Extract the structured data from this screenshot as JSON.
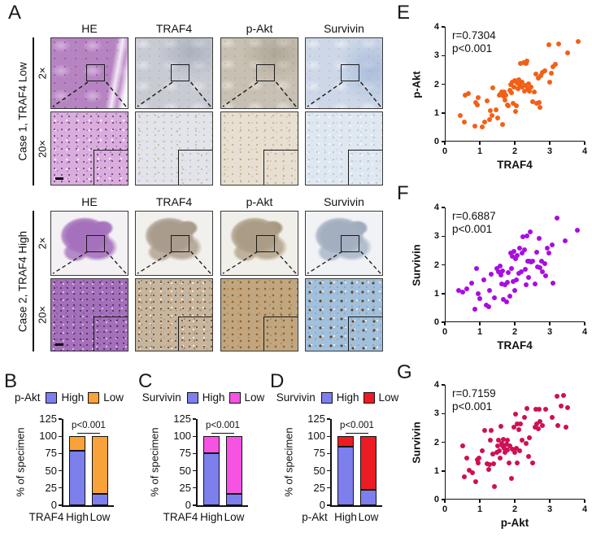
{
  "panelA": {
    "label": "A",
    "columns": [
      "HE",
      "TRAF4",
      "p-Akt",
      "Survivin"
    ],
    "blocks": [
      {
        "case_label": "Case 1, TRAF4 Low",
        "row_labels": [
          "2×",
          "20×"
        ]
      },
      {
        "case_label": "Case 2, TRAF4 High",
        "row_labels": [
          "2×",
          "20×"
        ]
      }
    ]
  },
  "chart_data": [
    {
      "id": "B",
      "type": "stacked-bar",
      "legend_title": "p-Akt",
      "legend": [
        {
          "label": "High",
          "color": "#7d7fed"
        },
        {
          "label": "Low",
          "color": "#f9a23a"
        }
      ],
      "ylabel": "% of specimen",
      "yticks": [
        0,
        25,
        50,
        75,
        100,
        125
      ],
      "ylim": [
        0,
        125
      ],
      "xlabel": "TRAF4",
      "categories": [
        "High",
        "Low"
      ],
      "series": [
        {
          "name": "High",
          "color": "#7d7fed",
          "values": [
            79,
            16
          ]
        },
        {
          "name": "Low",
          "color": "#f9a23a",
          "values": [
            21,
            84
          ]
        }
      ],
      "p_text": "p<0.001"
    },
    {
      "id": "C",
      "type": "stacked-bar",
      "legend_title": "Survivin",
      "legend": [
        {
          "label": "High",
          "color": "#7d7fed"
        },
        {
          "label": "Low",
          "color": "#f653e3"
        }
      ],
      "ylabel": "% of specimen",
      "yticks": [
        0,
        25,
        50,
        75,
        100,
        125
      ],
      "ylim": [
        0,
        125
      ],
      "xlabel": "TRAF4",
      "categories": [
        "High",
        "Low"
      ],
      "series": [
        {
          "name": "High",
          "color": "#7d7fed",
          "values": [
            75,
            17
          ]
        },
        {
          "name": "Low",
          "color": "#f653e3",
          "values": [
            25,
            83
          ]
        }
      ],
      "p_text": "p<0.001"
    },
    {
      "id": "D",
      "type": "stacked-bar",
      "legend_title": "Survivin",
      "legend": [
        {
          "label": "High",
          "color": "#7d7fed"
        },
        {
          "label": "Low",
          "color": "#ec1c24"
        }
      ],
      "ylabel": "% of specimen",
      "yticks": [
        0,
        25,
        50,
        75,
        100,
        125
      ],
      "ylim": [
        0,
        125
      ],
      "xlabel": "p-Akt",
      "categories": [
        "High",
        "Low"
      ],
      "series": [
        {
          "name": "High",
          "color": "#7d7fed",
          "values": [
            85,
            22
          ]
        },
        {
          "name": "Low",
          "color": "#ec1c24",
          "values": [
            15,
            78
          ]
        }
      ],
      "p_text": "p<0.001"
    },
    {
      "id": "E",
      "type": "scatter",
      "annotation": [
        "r=0.7304",
        "p<0.001"
      ],
      "xlabel": "TRAF4",
      "ylabel": "p-Akt",
      "color": "#f26018",
      "xlim": [
        0,
        4
      ],
      "ylim": [
        0,
        4
      ],
      "xticks": [
        0,
        1,
        2,
        3,
        4
      ],
      "yticks": [
        0,
        1,
        2,
        3,
        4
      ],
      "points": [
        [
          0.45,
          0.9
        ],
        [
          0.55,
          0.68
        ],
        [
          0.58,
          1.62
        ],
        [
          0.68,
          1.68
        ],
        [
          0.85,
          0.55
        ],
        [
          0.88,
          1.35
        ],
        [
          0.92,
          1.28
        ],
        [
          0.95,
          1.52
        ],
        [
          1.08,
          0.52
        ],
        [
          1.15,
          0.68
        ],
        [
          1.22,
          1.42
        ],
        [
          1.28,
          0.78
        ],
        [
          1.3,
          1.08
        ],
        [
          1.35,
          0.9
        ],
        [
          1.38,
          1.88
        ],
        [
          1.47,
          1.12
        ],
        [
          1.52,
          0.82
        ],
        [
          1.55,
          1.62
        ],
        [
          1.58,
          1.65
        ],
        [
          1.62,
          1.72
        ],
        [
          1.65,
          0.6
        ],
        [
          1.67,
          1.6
        ],
        [
          1.7,
          1.72
        ],
        [
          1.72,
          1.45
        ],
        [
          1.75,
          1.63
        ],
        [
          1.78,
          1.28
        ],
        [
          1.82,
          1.25
        ],
        [
          1.85,
          1.78
        ],
        [
          1.88,
          2.0
        ],
        [
          1.9,
          1.7
        ],
        [
          1.92,
          2.08
        ],
        [
          1.95,
          1.32
        ],
        [
          1.97,
          1.9
        ],
        [
          2.0,
          2.12
        ],
        [
          2.02,
          1.05
        ],
        [
          2.05,
          1.25
        ],
        [
          2.07,
          2.05
        ],
        [
          2.1,
          1.85
        ],
        [
          2.12,
          2.15
        ],
        [
          2.15,
          1.98
        ],
        [
          2.17,
          2.72
        ],
        [
          2.2,
          2.07
        ],
        [
          2.22,
          1.9
        ],
        [
          2.25,
          2.75
        ],
        [
          2.28,
          1.75
        ],
        [
          2.3,
          1.95
        ],
        [
          2.33,
          2.72
        ],
        [
          2.35,
          2.82
        ],
        [
          2.38,
          1.85
        ],
        [
          2.4,
          2.02
        ],
        [
          2.43,
          1.75
        ],
        [
          2.47,
          1.9
        ],
        [
          2.5,
          1.38
        ],
        [
          2.55,
          1.72
        ],
        [
          2.6,
          2.35
        ],
        [
          2.63,
          1.33
        ],
        [
          2.67,
          2.22
        ],
        [
          2.7,
          1.35
        ],
        [
          2.72,
          1.2
        ],
        [
          2.75,
          2.3
        ],
        [
          2.78,
          2.4
        ],
        [
          2.85,
          2.47
        ],
        [
          2.98,
          3.38
        ],
        [
          3.0,
          2.08
        ],
        [
          3.05,
          2.37
        ],
        [
          3.1,
          2.62
        ],
        [
          3.17,
          2.7
        ],
        [
          3.25,
          3.4
        ],
        [
          3.5,
          3.1
        ],
        [
          3.82,
          3.5
        ]
      ]
    },
    {
      "id": "F",
      "type": "scatter",
      "annotation": [
        "r=0.6887",
        "p<0.001"
      ],
      "xlabel": "TRAF4",
      "ylabel": "Survivin",
      "color": "#a80ddf",
      "xlim": [
        0,
        4
      ],
      "ylim": [
        0,
        4
      ],
      "xticks": [
        0,
        1,
        2,
        3,
        4
      ],
      "yticks": [
        0,
        1,
        2,
        3,
        4
      ],
      "points": [
        [
          0.4,
          1.12
        ],
        [
          0.52,
          1.05
        ],
        [
          0.63,
          1.15
        ],
        [
          0.77,
          1.35
        ],
        [
          0.85,
          0.45
        ],
        [
          0.9,
          1.87
        ],
        [
          0.95,
          1.0
        ],
        [
          1.0,
          0.82
        ],
        [
          1.12,
          1.48
        ],
        [
          1.18,
          0.6
        ],
        [
          1.25,
          0.55
        ],
        [
          1.28,
          1.1
        ],
        [
          1.33,
          1.67
        ],
        [
          1.43,
          0.85
        ],
        [
          1.48,
          1.87
        ],
        [
          1.53,
          1.75
        ],
        [
          1.57,
          1.95
        ],
        [
          1.6,
          1.65
        ],
        [
          1.62,
          1.33
        ],
        [
          1.65,
          1.78
        ],
        [
          1.68,
          0.8
        ],
        [
          1.72,
          1.3
        ],
        [
          1.77,
          0.72
        ],
        [
          1.78,
          1.38
        ],
        [
          1.82,
          1.72
        ],
        [
          1.85,
          0.9
        ],
        [
          1.88,
          2.42
        ],
        [
          1.9,
          1.87
        ],
        [
          1.92,
          2.3
        ],
        [
          1.95,
          1.43
        ],
        [
          1.98,
          2.47
        ],
        [
          2.0,
          1.1
        ],
        [
          2.03,
          2.22
        ],
        [
          2.05,
          1.48
        ],
        [
          2.08,
          2.33
        ],
        [
          2.12,
          1.7
        ],
        [
          2.15,
          2.57
        ],
        [
          2.18,
          1.75
        ],
        [
          2.22,
          2.42
        ],
        [
          2.23,
          2.98
        ],
        [
          2.27,
          2.53
        ],
        [
          2.3,
          1.83
        ],
        [
          2.32,
          1.3
        ],
        [
          2.35,
          3.02
        ],
        [
          2.37,
          2.13
        ],
        [
          2.4,
          1.57
        ],
        [
          2.42,
          2.13
        ],
        [
          2.45,
          3.15
        ],
        [
          2.47,
          2.1
        ],
        [
          2.52,
          2.12
        ],
        [
          2.57,
          1.33
        ],
        [
          2.62,
          2.45
        ],
        [
          2.65,
          1.93
        ],
        [
          2.7,
          2.93
        ],
        [
          2.73,
          1.9
        ],
        [
          2.77,
          2.12
        ],
        [
          2.8,
          1.75
        ],
        [
          2.85,
          2.05
        ],
        [
          2.88,
          1.62
        ],
        [
          2.93,
          2.57
        ],
        [
          2.97,
          2.42
        ],
        [
          3.07,
          2.7
        ],
        [
          3.1,
          1.37
        ],
        [
          3.22,
          3.63
        ],
        [
          3.45,
          2.85
        ],
        [
          3.8,
          3.2
        ]
      ]
    },
    {
      "id": "G",
      "type": "scatter",
      "annotation": [
        "r=0.7159",
        "p<0.001"
      ],
      "xlabel": "p-Akt",
      "ylabel": "Survivin",
      "color": "#cd1055",
      "xlim": [
        0,
        4
      ],
      "ylim": [
        0,
        4
      ],
      "xticks": [
        0,
        1,
        2,
        3,
        4
      ],
      "yticks": [
        0,
        1,
        2,
        3,
        4
      ],
      "points": [
        [
          0.52,
          1.87
        ],
        [
          0.56,
          0.8
        ],
        [
          0.63,
          1.45
        ],
        [
          0.7,
          1.03
        ],
        [
          0.8,
          0.95
        ],
        [
          0.88,
          0.62
        ],
        [
          0.92,
          1.4
        ],
        [
          0.95,
          1.27
        ],
        [
          0.98,
          1.45
        ],
        [
          1.08,
          1.7
        ],
        [
          1.15,
          2.4
        ],
        [
          1.2,
          1.25
        ],
        [
          1.25,
          1.05
        ],
        [
          1.27,
          1.22
        ],
        [
          1.3,
          2.07
        ],
        [
          1.33,
          2.4
        ],
        [
          1.38,
          1.58
        ],
        [
          1.4,
          1.25
        ],
        [
          1.43,
          0.45
        ],
        [
          1.48,
          1.65
        ],
        [
          1.5,
          1.88
        ],
        [
          1.53,
          2.07
        ],
        [
          1.55,
          1.7
        ],
        [
          1.58,
          1.45
        ],
        [
          1.6,
          2.55
        ],
        [
          1.63,
          1.97
        ],
        [
          1.65,
          1.88
        ],
        [
          1.68,
          2.1
        ],
        [
          1.7,
          1.8
        ],
        [
          1.73,
          1.65
        ],
        [
          1.77,
          1.92
        ],
        [
          1.78,
          2.08
        ],
        [
          1.8,
          1.72
        ],
        [
          1.83,
          1.27
        ],
        [
          1.87,
          1.88
        ],
        [
          1.9,
          0.75
        ],
        [
          1.93,
          1.75
        ],
        [
          1.97,
          2.52
        ],
        [
          2.0,
          1.65
        ],
        [
          2.02,
          2.97
        ],
        [
          2.05,
          1.78
        ],
        [
          2.07,
          2.65
        ],
        [
          2.08,
          1.27
        ],
        [
          2.12,
          2.45
        ],
        [
          2.15,
          1.7
        ],
        [
          2.17,
          2.63
        ],
        [
          2.22,
          2.07
        ],
        [
          2.27,
          2.87
        ],
        [
          2.32,
          1.97
        ],
        [
          2.35,
          3.18
        ],
        [
          2.4,
          1.5
        ],
        [
          2.42,
          2.15
        ],
        [
          2.52,
          1.27
        ],
        [
          2.57,
          2.53
        ],
        [
          2.6,
          3.15
        ],
        [
          2.63,
          2.63
        ],
        [
          2.67,
          2.48
        ],
        [
          2.7,
          3.15
        ],
        [
          2.73,
          2.73
        ],
        [
          2.78,
          2.57
        ],
        [
          2.88,
          3.15
        ],
        [
          3.07,
          2.87
        ],
        [
          3.2,
          3.6
        ],
        [
          3.23,
          2.57
        ],
        [
          3.33,
          3.25
        ],
        [
          3.4,
          3.63
        ],
        [
          3.47,
          2.53
        ],
        [
          3.52,
          3.2
        ]
      ]
    }
  ]
}
